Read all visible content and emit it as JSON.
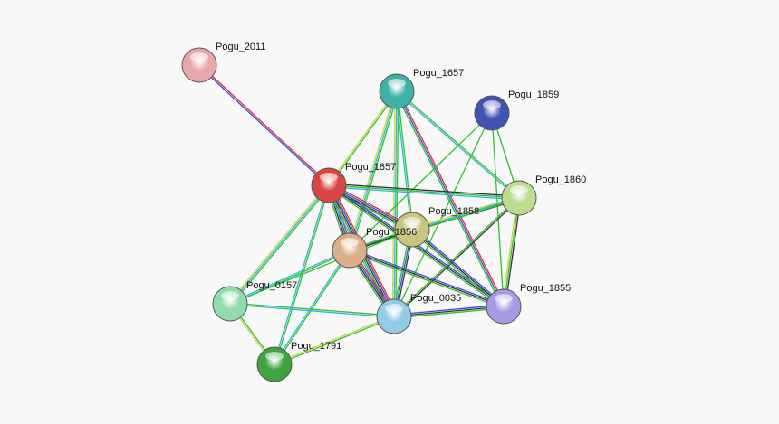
{
  "nodes": [
    {
      "label": "Pogu_2011"
    },
    {
      "label": "Pogu_1657"
    },
    {
      "label": "Pogu_1859"
    },
    {
      "label": "Pogu_1857"
    },
    {
      "label": "Pogu_1860"
    },
    {
      "label": "Pogu_1858"
    },
    {
      "label": "Pogu_1856"
    },
    {
      "label": "Pogu_0157"
    },
    {
      "label": "Pogu_0035"
    },
    {
      "label": "Pogu_1855"
    },
    {
      "label": "Pogu_1791"
    }
  ]
}
